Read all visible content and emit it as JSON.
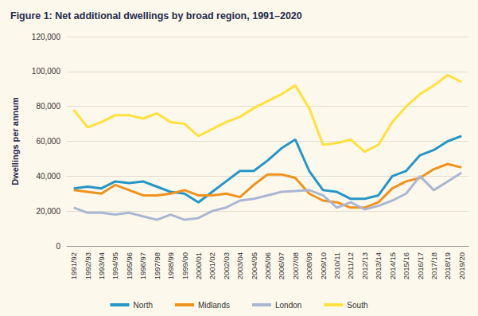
{
  "chart_data": {
    "type": "line",
    "title": "Figure 1: Net additional dwellings by broad region, 1991–2020",
    "y_label": "Dwellings per annum",
    "categories": [
      "1991/92",
      "1992/93",
      "1993/94",
      "1994/95",
      "1995/96",
      "1996/97",
      "1997/98",
      "1998/99",
      "1999/00",
      "2000/01",
      "2001/02",
      "2002/03",
      "2003/04",
      "2004/05",
      "2005/06",
      "2006/07",
      "2007/08",
      "2008/09",
      "2009/10",
      "2010/11",
      "2011/12",
      "2012/13",
      "2013/14",
      "2014/15",
      "2015/16",
      "2016/17",
      "2017/18",
      "2018/19",
      "2019/20"
    ],
    "series": [
      {
        "name": "North",
        "color": "#2596c8",
        "values": [
          33000,
          34000,
          33000,
          37000,
          36000,
          37000,
          34000,
          31000,
          30000,
          25000,
          31000,
          37000,
          43000,
          43000,
          49000,
          56000,
          61000,
          43000,
          32000,
          31000,
          27000,
          27000,
          29000,
          40000,
          43000,
          52000,
          55000,
          60000,
          63000
        ]
      },
      {
        "name": "Midlands",
        "color": "#f0921e",
        "values": [
          32000,
          31000,
          30000,
          35000,
          32000,
          29000,
          29000,
          30000,
          32000,
          29000,
          29000,
          30000,
          28000,
          35000,
          41000,
          41000,
          39000,
          30000,
          26000,
          25000,
          22000,
          22000,
          25000,
          33000,
          37000,
          39000,
          44000,
          47000,
          45000
        ]
      },
      {
        "name": "London",
        "color": "#a9b7d3",
        "values": [
          22000,
          19000,
          19000,
          18000,
          19000,
          17000,
          15000,
          18000,
          15000,
          16000,
          20000,
          22000,
          26000,
          27000,
          29000,
          31000,
          31500,
          32000,
          29000,
          22000,
          25000,
          21000,
          23000,
          26000,
          30000,
          40000,
          32000,
          37000,
          42000
        ]
      },
      {
        "name": "South",
        "color": "#ffe13d",
        "values": [
          78000,
          68000,
          71000,
          75000,
          75000,
          73000,
          76000,
          71000,
          70000,
          63000,
          67000,
          71000,
          74000,
          79000,
          83000,
          87000,
          92000,
          79000,
          58000,
          59000,
          61000,
          54000,
          58000,
          71000,
          80000,
          87000,
          92000,
          98000,
          94000
        ]
      }
    ],
    "ylim": [
      0,
      120000
    ],
    "yticks": [
      0,
      {
        "value": 20000,
        "label": "20,000"
      },
      {
        "value": 40000,
        "label": "40,000"
      },
      {
        "value": 60000,
        "label": "60,000"
      },
      {
        "value": 80000,
        "label": "80,000"
      },
      {
        "value": 100000,
        "label": "100,000"
      },
      {
        "value": 120000,
        "label": "120,000"
      }
    ],
    "grid": true,
    "legend": "bottom",
    "marker": "none",
    "line_style": "solid"
  }
}
